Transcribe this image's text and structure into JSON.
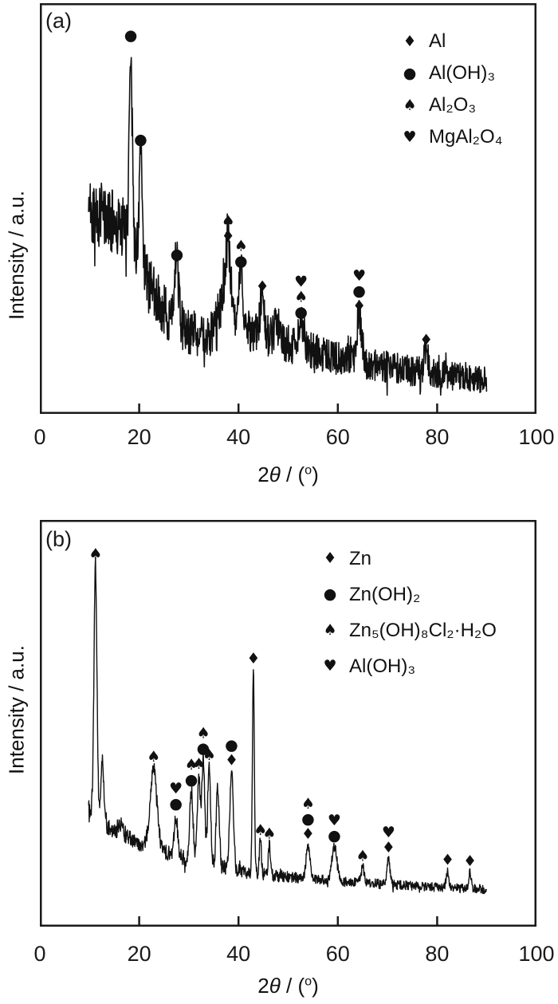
{
  "figure": {
    "background": "#ffffff",
    "ink_color": "#111111",
    "frame_color": "#1a1a1a"
  },
  "symbols": {
    "diamond": "♦",
    "circle": "●",
    "spade": "♠",
    "heart": "♥"
  },
  "axis": {
    "ylabel": "Intensity / a.u.",
    "xlabel_pre": "2",
    "xlabel_theta": "θ",
    "xlabel_mid": " / (",
    "xlabel_deg": "o",
    "xlabel_post": ")"
  },
  "chart_data": [
    {
      "type": "line",
      "panel_label": "(a)",
      "xlabel": "2θ / (°)",
      "ylabel": "Intensity / a.u.",
      "xlim": [
        0,
        100
      ],
      "x_ticks": [
        0,
        20,
        40,
        60,
        80,
        100
      ],
      "x_data_range": [
        9.8,
        90
      ],
      "grid": false,
      "legend_position": "top-right",
      "sample_step": 0.07,
      "seed": 42,
      "line_width": 1.6,
      "legend": [
        {
          "symbol": "diamond",
          "label": "Al"
        },
        {
          "symbol": "circle",
          "label": "Al(OH)₃"
        },
        {
          "symbol": "spade",
          "label": "Al₂O₃"
        },
        {
          "symbol": "heart",
          "label": "MgAl₂O₄"
        }
      ],
      "baseline": [
        [
          9.8,
          0.5
        ],
        [
          12,
          0.485
        ],
        [
          15,
          0.465
        ],
        [
          17,
          0.45
        ],
        [
          19,
          0.41
        ],
        [
          21,
          0.35
        ],
        [
          23,
          0.3
        ],
        [
          25,
          0.25
        ],
        [
          27,
          0.225
        ],
        [
          30,
          0.205
        ],
        [
          33,
          0.19
        ],
        [
          35,
          0.195
        ],
        [
          38,
          0.205
        ],
        [
          41,
          0.205
        ],
        [
          44,
          0.195
        ],
        [
          47,
          0.185
        ],
        [
          50,
          0.17
        ],
        [
          54,
          0.155
        ],
        [
          58,
          0.14
        ],
        [
          62,
          0.13
        ],
        [
          66,
          0.122
        ],
        [
          70,
          0.115
        ],
        [
          74,
          0.106
        ],
        [
          78,
          0.1
        ],
        [
          82,
          0.094
        ],
        [
          86,
          0.088
        ],
        [
          90,
          0.082
        ]
      ],
      "noise_amplitude": [
        [
          9.8,
          0.082
        ],
        [
          15,
          0.078
        ],
        [
          20,
          0.07
        ],
        [
          25,
          0.065
        ],
        [
          30,
          0.058
        ],
        [
          35,
          0.055
        ],
        [
          40,
          0.05
        ],
        [
          45,
          0.05
        ],
        [
          50,
          0.048
        ],
        [
          55,
          0.045
        ],
        [
          60,
          0.042
        ],
        [
          65,
          0.042
        ],
        [
          70,
          0.04
        ],
        [
          75,
          0.038
        ],
        [
          80,
          0.036
        ],
        [
          85,
          0.034
        ],
        [
          90,
          0.032
        ]
      ],
      "peaks": [
        {
          "two_theta": 18.3,
          "height": 0.47,
          "fwhm": 0.7,
          "markers": [
            "circle"
          ]
        },
        {
          "two_theta": 20.3,
          "height": 0.27,
          "fwhm": 0.6,
          "markers": [
            "circle"
          ]
        },
        {
          "two_theta": 27.6,
          "height": 0.14,
          "fwhm": 0.9,
          "markers": [
            "circle"
          ]
        },
        {
          "two_theta": 36.3,
          "height": 0.05,
          "fwhm": 1.6,
          "markers": []
        },
        {
          "two_theta": 37.9,
          "height": 0.2,
          "fwhm": 1.4,
          "markers": [
            "spade",
            "diamond"
          ]
        },
        {
          "two_theta": 40.5,
          "height": 0.14,
          "fwhm": 1.0,
          "markers": [
            "spade",
            "circle"
          ]
        },
        {
          "two_theta": 44.8,
          "height": 0.09,
          "fwhm": 1.0,
          "markers": [
            "diamond"
          ]
        },
        {
          "two_theta": 47.8,
          "height": 0.035,
          "fwhm": 1.2,
          "markers": []
        },
        {
          "two_theta": 52.6,
          "height": 0.06,
          "fwhm": 1.4,
          "markers": [
            "heart",
            "spade",
            "circle"
          ]
        },
        {
          "two_theta": 64.3,
          "height": 0.11,
          "fwhm": 1.2,
          "markers": [
            "heart",
            "circle",
            "diamond"
          ]
        },
        {
          "two_theta": 77.8,
          "height": 0.052,
          "fwhm": 1.0,
          "markers": [
            "diamond"
          ]
        }
      ]
    },
    {
      "type": "line",
      "panel_label": "(b)",
      "xlabel": "2θ / (°)",
      "ylabel": "Intensity / a.u.",
      "xlim": [
        0,
        100
      ],
      "x_ticks": [
        0,
        20,
        40,
        60,
        80,
        100
      ],
      "x_data_range": [
        9.8,
        90
      ],
      "grid": false,
      "legend_position": "top-right",
      "sample_step": 0.07,
      "seed": 1234,
      "line_width": 1.4,
      "legend": [
        {
          "symbol": "diamond",
          "label": "Zn"
        },
        {
          "symbol": "circle",
          "label": "Zn(OH)₂"
        },
        {
          "symbol": "spade",
          "label": "Zn₅(OH)₈Cl₂·H₂O"
        },
        {
          "symbol": "heart",
          "label": "Al(OH)₃"
        }
      ],
      "baseline": [
        [
          9.8,
          0.29
        ],
        [
          11,
          0.27
        ],
        [
          13,
          0.25
        ],
        [
          15,
          0.235
        ],
        [
          17,
          0.222
        ],
        [
          20,
          0.205
        ],
        [
          23,
          0.19
        ],
        [
          26,
          0.18
        ],
        [
          29,
          0.168
        ],
        [
          32,
          0.158
        ],
        [
          35,
          0.152
        ],
        [
          38,
          0.143
        ],
        [
          41,
          0.135
        ],
        [
          44,
          0.13
        ],
        [
          47,
          0.126
        ],
        [
          50,
          0.122
        ],
        [
          54,
          0.117
        ],
        [
          58,
          0.113
        ],
        [
          62,
          0.11
        ],
        [
          66,
          0.107
        ],
        [
          70,
          0.104
        ],
        [
          75,
          0.1
        ],
        [
          80,
          0.097
        ],
        [
          85,
          0.094
        ],
        [
          90,
          0.092
        ]
      ],
      "noise_amplitude": [
        [
          9.8,
          0.022
        ],
        [
          15,
          0.02
        ],
        [
          20,
          0.019
        ],
        [
          25,
          0.018
        ],
        [
          30,
          0.02
        ],
        [
          35,
          0.018
        ],
        [
          40,
          0.016
        ],
        [
          45,
          0.015
        ],
        [
          50,
          0.014
        ],
        [
          55,
          0.013
        ],
        [
          60,
          0.013
        ],
        [
          65,
          0.012
        ],
        [
          70,
          0.012
        ],
        [
          75,
          0.011
        ],
        [
          80,
          0.011
        ],
        [
          85,
          0.011
        ],
        [
          90,
          0.011
        ]
      ],
      "peaks": [
        {
          "two_theta": 11.2,
          "height": 0.62,
          "fwhm": 0.7,
          "markers": [
            "spade"
          ]
        },
        {
          "two_theta": 12.6,
          "height": 0.16,
          "fwhm": 0.6,
          "markers": []
        },
        {
          "two_theta": 16.3,
          "height": 0.025,
          "fwhm": 1.0,
          "markers": []
        },
        {
          "two_theta": 22.9,
          "height": 0.2,
          "fwhm": 1.6,
          "markers": [
            "spade"
          ]
        },
        {
          "two_theta": 27.4,
          "height": 0.1,
          "fwhm": 0.8,
          "markers": [
            "heart",
            "circle"
          ]
        },
        {
          "two_theta": 30.5,
          "height": 0.17,
          "fwhm": 0.8,
          "markers": [
            "spade",
            "circle"
          ]
        },
        {
          "two_theta": 32.0,
          "height": 0.215,
          "fwhm": 0.7,
          "markers": [
            "spade"
          ]
        },
        {
          "two_theta": 32.9,
          "height": 0.255,
          "fwhm": 0.7,
          "markers": [
            "spade",
            "circle"
          ]
        },
        {
          "two_theta": 34.1,
          "height": 0.24,
          "fwhm": 0.7,
          "markers": [
            "spade"
          ]
        },
        {
          "two_theta": 35.8,
          "height": 0.195,
          "fwhm": 0.7,
          "markers": []
        },
        {
          "two_theta": 38.6,
          "height": 0.24,
          "fwhm": 0.8,
          "markers": [
            "circle",
            "diamond"
          ]
        },
        {
          "two_theta": 43.0,
          "height": 0.5,
          "fwhm": 0.45,
          "markers": [
            "diamond"
          ]
        },
        {
          "two_theta": 44.4,
          "height": 0.08,
          "fwhm": 0.5,
          "markers": [
            "spade"
          ]
        },
        {
          "two_theta": 46.2,
          "height": 0.074,
          "fwhm": 0.5,
          "markers": [
            "spade"
          ]
        },
        {
          "two_theta": 54.0,
          "height": 0.083,
          "fwhm": 0.9,
          "markers": [
            "spade",
            "circle",
            "diamond"
          ]
        },
        {
          "two_theta": 59.3,
          "height": 0.084,
          "fwhm": 1.2,
          "markers": [
            "heart",
            "circle"
          ]
        },
        {
          "two_theta": 65.0,
          "height": 0.038,
          "fwhm": 0.7,
          "markers": [
            "spade"
          ]
        },
        {
          "two_theta": 70.2,
          "height": 0.063,
          "fwhm": 0.7,
          "markers": [
            "heart",
            "diamond"
          ]
        },
        {
          "two_theta": 82.1,
          "height": 0.041,
          "fwhm": 0.6,
          "markers": [
            "diamond"
          ]
        },
        {
          "two_theta": 86.6,
          "height": 0.04,
          "fwhm": 0.6,
          "markers": [
            "diamond"
          ]
        }
      ]
    }
  ]
}
